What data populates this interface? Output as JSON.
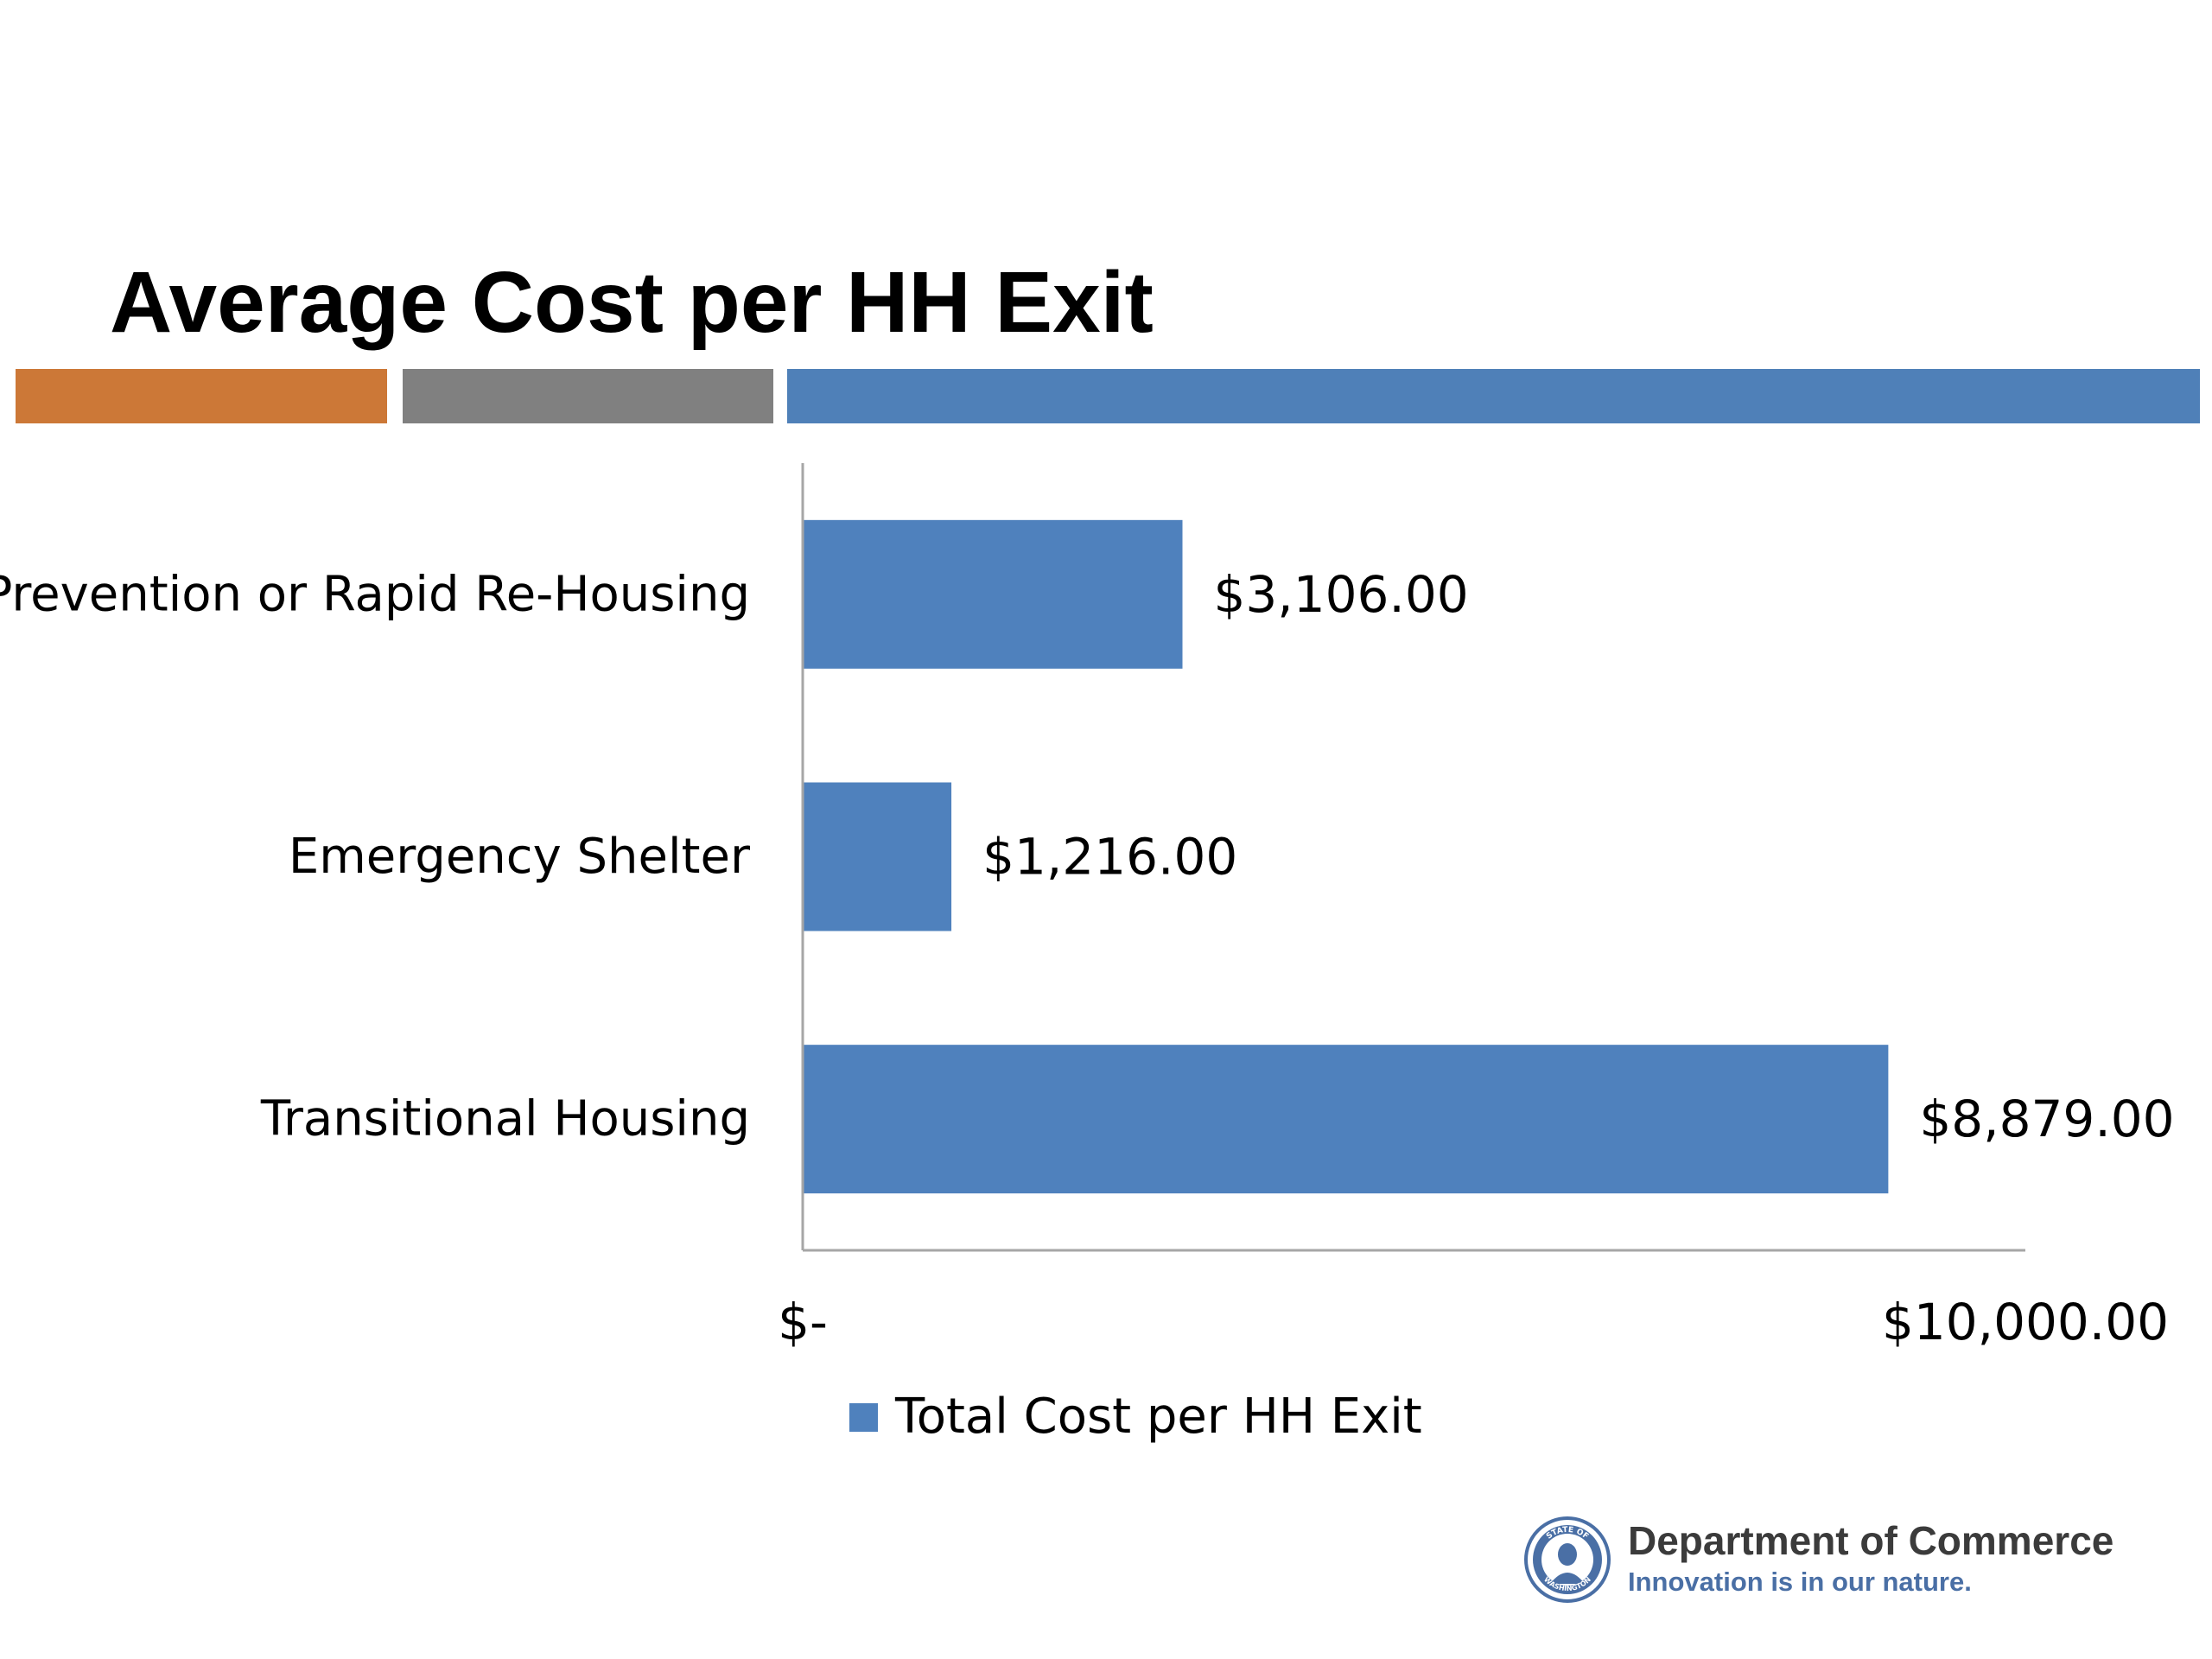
{
  "colors": {
    "accent_orange": "#cc7837",
    "accent_gray": "#808080",
    "accent_blue": "#4f80b8",
    "bar": "#4f81bd",
    "axis": "#a6a6a6",
    "tagline": "#4a6fa5",
    "logo": "#4a6fa5"
  },
  "chart_data": {
    "type": "bar",
    "orientation": "horizontal",
    "title": "Average Cost per HH Exit",
    "categories": [
      "Prevention or Rapid Re-Housing",
      "Emergency Shelter",
      "Transitional Housing"
    ],
    "series": [
      {
        "name": "Total Cost per HH Exit",
        "values": [
          3106,
          1216,
          8879
        ],
        "data_labels": [
          "$3,106.00",
          "$1,216.00",
          "$8,879.00"
        ]
      }
    ],
    "xlim": [
      0,
      10000
    ],
    "x_ticks": [
      0,
      10000
    ],
    "x_tick_labels": [
      "$-",
      "$10,000.00"
    ],
    "grid": false,
    "legend": "bottom"
  },
  "footer": {
    "org_name": "Department of Commerce",
    "tagline": "Innovation is in our nature.",
    "logo_icon": "state-of-washington-seal-icon",
    "seal_text_top": "STATE OF",
    "seal_text_bottom": "WASHINGTON"
  }
}
